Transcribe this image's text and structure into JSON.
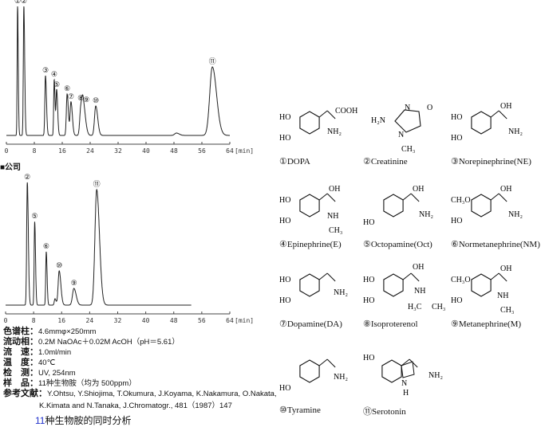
{
  "company_fragment": "■公司",
  "chart_data": [
    {
      "type": "line",
      "title": "",
      "xlabel": "[min]",
      "xlim": [
        0,
        64
      ],
      "xticks": [
        0,
        8,
        16,
        24,
        32,
        40,
        48,
        56,
        64
      ],
      "grid": false,
      "peaks": [
        {
          "label": "①",
          "rt": 3.2,
          "height": 162,
          "sigma": 0.12
        },
        {
          "label": "②",
          "rt": 5.0,
          "height": 162,
          "sigma": 0.15
        },
        {
          "label": "③",
          "rt": 11.2,
          "height": 75,
          "sigma": 0.18
        },
        {
          "label": "④",
          "rt": 13.7,
          "height": 70,
          "sigma": 0.15
        },
        {
          "label": "⑤",
          "rt": 14.4,
          "height": 57,
          "sigma": 0.18
        },
        {
          "label": "⑥",
          "rt": 17.4,
          "height": 52,
          "sigma": 0.22
        },
        {
          "label": "⑦",
          "rt": 18.5,
          "height": 42,
          "sigma": 0.25
        },
        {
          "label": "⑧",
          "rt": 21.3,
          "height": 30,
          "sigma": 0.3
        },
        {
          "label": "⑨",
          "rt": 22.0,
          "height": 38,
          "sigma": 0.4
        },
        {
          "label": "⑩",
          "rt": 25.6,
          "height": 37,
          "sigma": 0.35
        },
        {
          "label": "",
          "rt": 48.7,
          "height": 3,
          "sigma": 0.5
        },
        {
          "label": "⑪",
          "rt": 59.0,
          "height": 86,
          "sigma": 0.75
        }
      ],
      "end_time": 64
    },
    {
      "type": "line",
      "title": "",
      "xlabel": "[min]",
      "xlim": [
        0,
        64
      ],
      "xticks": [
        0,
        8,
        16,
        24,
        32,
        40,
        48,
        56,
        64
      ],
      "grid": false,
      "peaks": [
        {
          "label": "②",
          "rt": 6.2,
          "height": 154,
          "sigma": 0.18
        },
        {
          "label": "⑤",
          "rt": 8.3,
          "height": 105,
          "sigma": 0.15
        },
        {
          "label": "⑥",
          "rt": 11.6,
          "height": 67,
          "sigma": 0.15
        },
        {
          "label": "",
          "rt": 14.1,
          "height": 8,
          "sigma": 0.2
        },
        {
          "label": "⑩",
          "rt": 15.3,
          "height": 43,
          "sigma": 0.3
        },
        {
          "label": "⑨",
          "rt": 19.5,
          "height": 21,
          "sigma": 0.4
        },
        {
          "label": "⑪",
          "rt": 26.0,
          "height": 145,
          "sigma": 0.5
        }
      ],
      "end_time": 53
    }
  ],
  "conditions": [
    {
      "key": "色谱柱：",
      "value": "4.6mmφ×250mm"
    },
    {
      "key": "流动相：",
      "value": "0.2M NaOAc＋0.02M AcOH（pH＝5.61）"
    },
    {
      "key": "流　速：",
      "value": "1.0ml/min"
    },
    {
      "key": "温　度：",
      "value": "40℃"
    },
    {
      "key": "检　测：",
      "value": "UV, 254nm"
    },
    {
      "key": "样　品：",
      "value": "11种生物胺（均为 500ppm）"
    },
    {
      "key": "参考文献：",
      "value": "Y.Ohtsu, Y.Shiojima, T.Okumura, J.Koyama, K.Nakamura, O.Nakata,"
    }
  ],
  "reference_line2": "K.Kimata and N.Tanaka, J.Chromatogr., 481（1987）147",
  "caption": {
    "number": "11",
    "text": "种生物胺的同时分析"
  },
  "structures": [
    {
      "name": "①DOPA",
      "atoms": [
        "HO",
        "HO",
        "COOH",
        "NH₂"
      ]
    },
    {
      "name": "②Creatinine",
      "atoms": [
        "H₂N",
        "N",
        "O",
        "N",
        "CH₃"
      ]
    },
    {
      "name": "③Norepinephrine(NE)",
      "atoms": [
        "HO",
        "HO",
        "OH",
        "NH₂"
      ]
    },
    {
      "name": "④Epinephrine(E)",
      "atoms": [
        "HO",
        "HO",
        "OH",
        "NH",
        "CH₃"
      ]
    },
    {
      "name": "⑤Octopamine(Oct)",
      "atoms": [
        "HO",
        "OH",
        "NH₂"
      ]
    },
    {
      "name": "⑥Normetanephrine(NM)",
      "atoms": [
        "CH₃O",
        "HO",
        "OH",
        "NH₂"
      ]
    },
    {
      "name": "⑦Dopamine(DA)",
      "atoms": [
        "HO",
        "HO",
        "NH₂"
      ]
    },
    {
      "name": "⑧Isoproterenol",
      "atoms": [
        "HO",
        "HO",
        "OH",
        "NH",
        "H₃C",
        "CH₃"
      ]
    },
    {
      "name": "⑨Metanephrine(M)",
      "atoms": [
        "CH₃O",
        "HO",
        "OH",
        "NH",
        "CH₃"
      ]
    },
    {
      "name": "⑩Tyramine",
      "atoms": [
        "HO",
        "NH₂"
      ]
    },
    {
      "name": "⑪Serotonin",
      "atoms": [
        "HO",
        "N",
        "H",
        "NH₂"
      ]
    }
  ]
}
